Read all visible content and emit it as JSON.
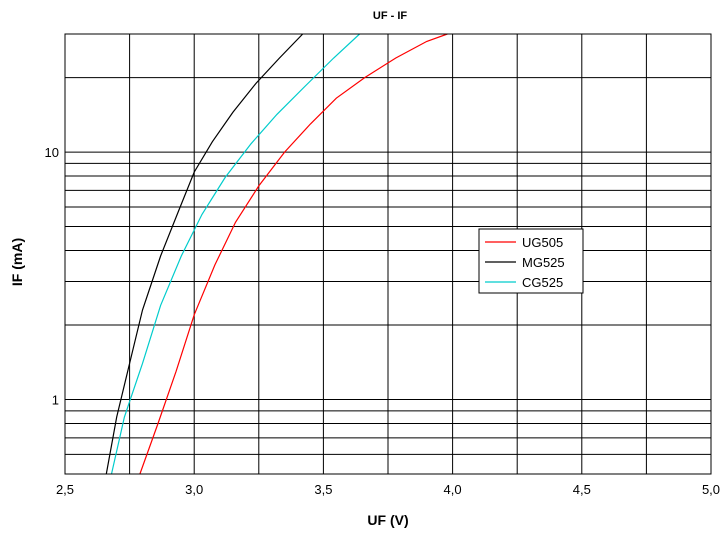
{
  "chart_data": {
    "type": "line",
    "title": "UF - IF",
    "xlabel": "UF (V)",
    "ylabel": "IF (mA)",
    "xlim": [
      2.5,
      5.0
    ],
    "ylim": [
      0.5,
      30
    ],
    "yscale": "log",
    "grid": true,
    "legend_position": "right",
    "x_ticks": [
      "2,5",
      "3,0",
      "3,5",
      "4,0",
      "4,5",
      "5,0"
    ],
    "x_tick_values": [
      2.5,
      3.0,
      3.5,
      4.0,
      4.5,
      5.0
    ],
    "y_ticks": [
      "1",
      "10"
    ],
    "y_tick_values": [
      1,
      10
    ],
    "series": [
      {
        "name": "UG505",
        "color": "#ff0000",
        "x": [
          2.79,
          2.86,
          2.93,
          3.0,
          3.08,
          3.16,
          3.25,
          3.35,
          3.45,
          3.55,
          3.66,
          3.78,
          3.9,
          3.98
        ],
        "y": [
          0.5,
          0.8,
          1.3,
          2.2,
          3.5,
          5.2,
          7.3,
          10.0,
          13.0,
          16.5,
          20.0,
          24.0,
          28.0,
          30.0
        ]
      },
      {
        "name": "MG525",
        "color": "#000000",
        "x": [
          2.66,
          2.7,
          2.75,
          2.8,
          2.87,
          2.94,
          3.0,
          3.07,
          3.15,
          3.24,
          3.33,
          3.42
        ],
        "y": [
          0.5,
          0.85,
          1.4,
          2.3,
          3.8,
          5.8,
          8.3,
          11.0,
          14.5,
          19.0,
          24.0,
          30.0
        ]
      },
      {
        "name": "CG525",
        "color": "#00cccc",
        "x": [
          2.68,
          2.73,
          2.8,
          2.87,
          2.95,
          3.03,
          3.12,
          3.22,
          3.32,
          3.43,
          3.54,
          3.64
        ],
        "y": [
          0.5,
          0.85,
          1.4,
          2.4,
          3.8,
          5.6,
          7.9,
          10.8,
          14.2,
          18.5,
          24.0,
          30.0
        ]
      }
    ]
  }
}
